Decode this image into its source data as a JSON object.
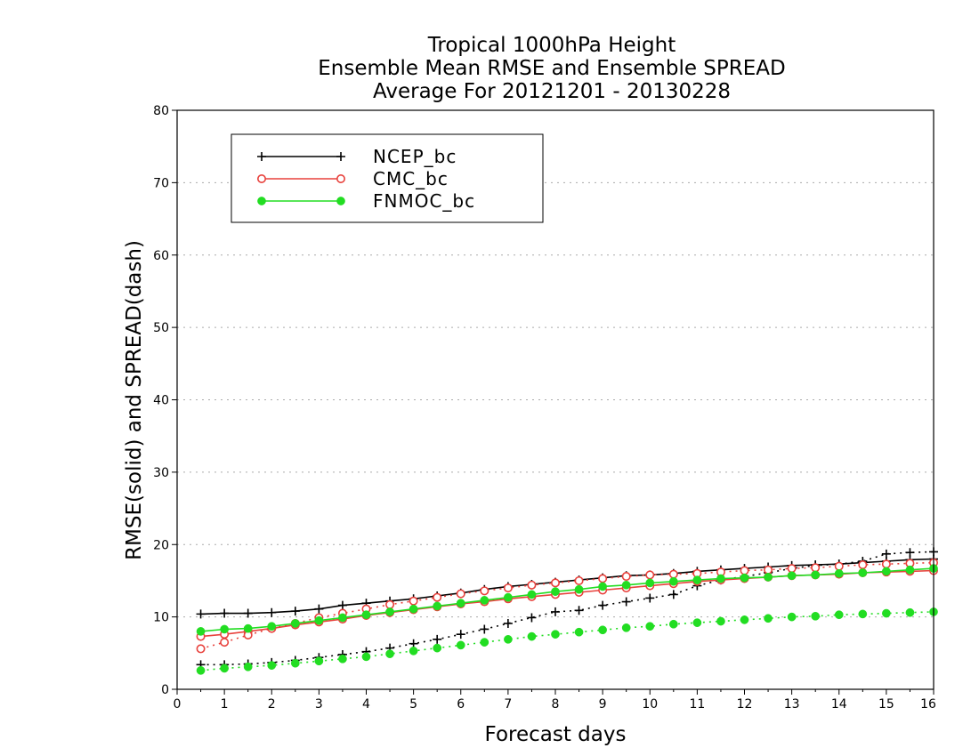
{
  "chart_data": {
    "type": "line",
    "title": [
      "Tropical 1000hPa Height",
      "Ensemble Mean RMSE and Ensemble SPREAD",
      "Average For 20121201 - 20130228"
    ],
    "xlabel": "Forecast days",
    "ylabel": "RMSE(solid) and SPREAD(dash)",
    "xlim": [
      0,
      16
    ],
    "ylim": [
      0,
      80
    ],
    "xticks": [
      "0",
      "1",
      "2",
      "3",
      "4",
      "5",
      "6",
      "7",
      "8",
      "9",
      "10",
      "11",
      "12",
      "13",
      "14",
      "15",
      "16"
    ],
    "yticks": [
      "0",
      "10",
      "20",
      "30",
      "40",
      "50",
      "60",
      "70",
      "80"
    ],
    "grid": "horizontal dotted",
    "legend_position": "top-left",
    "x": [
      0.5,
      1,
      1.5,
      2,
      2.5,
      3,
      3.5,
      4,
      4.5,
      5,
      5.5,
      6,
      6.5,
      7,
      7.5,
      8,
      8.5,
      9,
      9.5,
      10,
      10.5,
      11,
      11.5,
      12,
      12.5,
      13,
      13.5,
      14,
      14.5,
      15,
      15.5,
      16
    ],
    "series": [
      {
        "name": "NCEP_bc",
        "metric": "RMSE",
        "color": "#000000",
        "marker": "plus",
        "style": "solid",
        "values": [
          10.4,
          10.5,
          10.5,
          10.6,
          10.8,
          11.1,
          11.6,
          11.9,
          12.2,
          12.5,
          12.9,
          13.3,
          13.8,
          14.2,
          14.5,
          14.8,
          15.1,
          15.4,
          15.7,
          15.8,
          16.0,
          16.3,
          16.5,
          16.7,
          16.9,
          17.1,
          17.2,
          17.3,
          17.5,
          17.7,
          17.9,
          18.0
        ]
      },
      {
        "name": "NCEP_bc",
        "metric": "SPREAD",
        "color": "#000000",
        "marker": "plus",
        "style": "dash",
        "values": [
          3.4,
          3.4,
          3.5,
          3.7,
          4.0,
          4.4,
          4.8,
          5.2,
          5.7,
          6.3,
          6.9,
          7.6,
          8.3,
          9.1,
          9.9,
          10.7,
          10.9,
          11.6,
          12.1,
          12.6,
          13.1,
          14.3,
          15.1,
          15.6,
          16.1,
          16.7,
          17.1,
          17.3,
          17.7,
          18.7,
          18.9,
          19.0
        ]
      },
      {
        "name": "CMC_bc",
        "metric": "RMSE",
        "color": "#e8413c",
        "marker": "open-circle",
        "style": "solid",
        "values": [
          7.3,
          7.6,
          8.0,
          8.4,
          8.9,
          9.3,
          9.7,
          10.2,
          10.6,
          11.0,
          11.4,
          11.8,
          12.1,
          12.5,
          12.8,
          13.1,
          13.4,
          13.7,
          14.0,
          14.3,
          14.6,
          14.9,
          15.1,
          15.3,
          15.5,
          15.7,
          15.8,
          15.9,
          16.1,
          16.2,
          16.3,
          16.4
        ]
      },
      {
        "name": "CMC_bc",
        "metric": "SPREAD",
        "color": "#e8413c",
        "marker": "open-circle",
        "style": "dash",
        "values": [
          5.6,
          6.5,
          7.5,
          8.4,
          9.1,
          9.9,
          10.5,
          11.1,
          11.7,
          12.2,
          12.7,
          13.2,
          13.6,
          14.0,
          14.4,
          14.7,
          15.0,
          15.3,
          15.6,
          15.8,
          15.9,
          16.0,
          16.2,
          16.4,
          16.5,
          16.7,
          16.8,
          17.0,
          17.2,
          17.3,
          17.4,
          17.5
        ]
      },
      {
        "name": "FNMOC_bc",
        "metric": "RMSE",
        "color": "#22dd22",
        "marker": "filled-circle",
        "style": "solid",
        "values": [
          8.0,
          8.3,
          8.4,
          8.7,
          9.1,
          9.5,
          9.9,
          10.3,
          10.7,
          11.1,
          11.5,
          11.9,
          12.3,
          12.7,
          13.1,
          13.5,
          13.8,
          14.2,
          14.4,
          14.7,
          14.9,
          15.1,
          15.3,
          15.4,
          15.5,
          15.7,
          15.8,
          16.0,
          16.1,
          16.3,
          16.5,
          16.7
        ]
      },
      {
        "name": "FNMOC_bc",
        "metric": "SPREAD",
        "color": "#22dd22",
        "marker": "filled-circle",
        "style": "dash",
        "values": [
          2.6,
          2.9,
          3.1,
          3.3,
          3.6,
          3.9,
          4.2,
          4.5,
          4.9,
          5.3,
          5.7,
          6.1,
          6.5,
          6.9,
          7.3,
          7.6,
          7.9,
          8.2,
          8.5,
          8.7,
          9.0,
          9.2,
          9.4,
          9.6,
          9.8,
          10.0,
          10.1,
          10.3,
          10.4,
          10.5,
          10.6,
          10.7
        ]
      }
    ],
    "legend": [
      {
        "label": "NCEP_bc",
        "color": "#000000",
        "marker": "plus"
      },
      {
        "label": "CMC_bc",
        "color": "#e8413c",
        "marker": "open-circle"
      },
      {
        "label": "FNMOC_bc",
        "color": "#22dd22",
        "marker": "filled-circle"
      }
    ]
  }
}
